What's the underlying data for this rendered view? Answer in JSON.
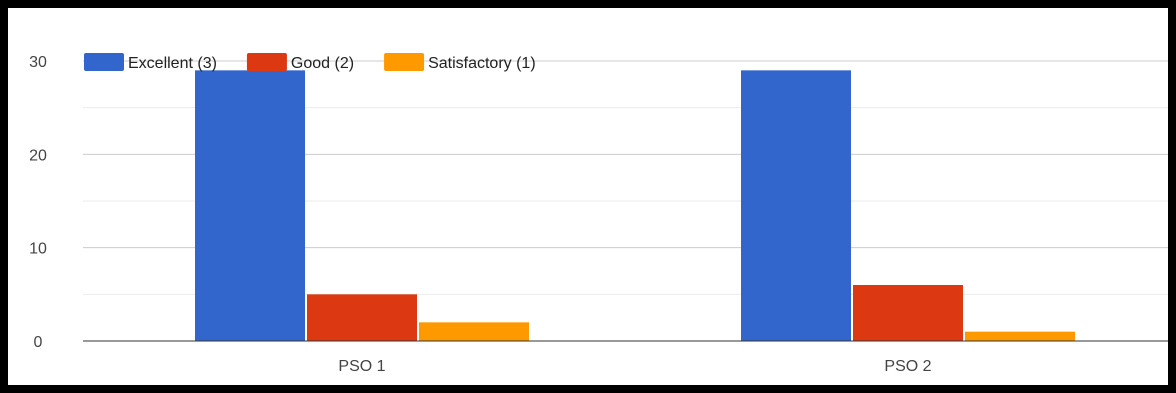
{
  "chart_data": {
    "type": "bar",
    "title": "",
    "xlabel": "",
    "ylabel": "",
    "categories": [
      "PSO 1",
      "PSO 2"
    ],
    "series": [
      {
        "name": "Excellent (3)",
        "values": [
          29,
          29
        ],
        "color": "#3366cc"
      },
      {
        "name": "Good (2)",
        "values": [
          5,
          6
        ],
        "color": "#dc3912"
      },
      {
        "name": "Satisfactory (1)",
        "values": [
          2,
          1
        ],
        "color": "#ff9900"
      }
    ],
    "ylim": [
      0,
      30
    ],
    "yticks": [
      0,
      10,
      20,
      30
    ],
    "grid": true,
    "legend_position": "top-left"
  }
}
